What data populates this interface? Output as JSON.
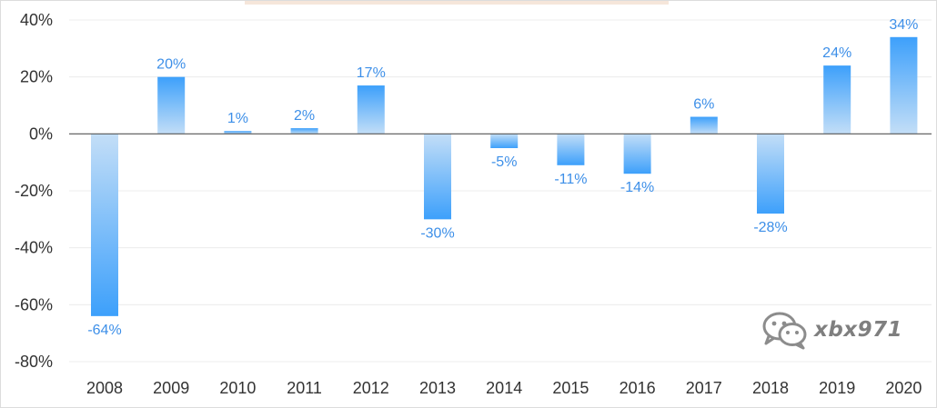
{
  "chart_data": {
    "type": "bar",
    "title": "",
    "xlabel": "",
    "ylabel": "",
    "categories": [
      "2008",
      "2009",
      "2010",
      "2011",
      "2012",
      "2013",
      "2014",
      "2015",
      "2016",
      "2017",
      "2018",
      "2019",
      "2020"
    ],
    "values": [
      -64,
      20,
      1,
      2,
      17,
      -30,
      -5,
      -11,
      -14,
      6,
      -28,
      24,
      34
    ],
    "value_labels": [
      "-64%",
      "20%",
      "1%",
      "2%",
      "17%",
      "-30%",
      "-5%",
      "-11%",
      "-14%",
      "6%",
      "-28%",
      "24%",
      "34%"
    ],
    "y_ticks": [
      40,
      20,
      0,
      -20,
      -40,
      -60,
      -80
    ],
    "y_tick_labels": [
      "40%",
      "20%",
      "0%",
      "-20%",
      "-40%",
      "-60%",
      "-80%"
    ],
    "ylim": [
      -80,
      40
    ],
    "grid": true,
    "legend": "none",
    "bar_color": "#3da0fb",
    "bar_color_light": "#c3def7",
    "label_color": "#3d8fe8"
  },
  "watermark": {
    "icon": "wechat-icon",
    "text": "xbx971"
  }
}
